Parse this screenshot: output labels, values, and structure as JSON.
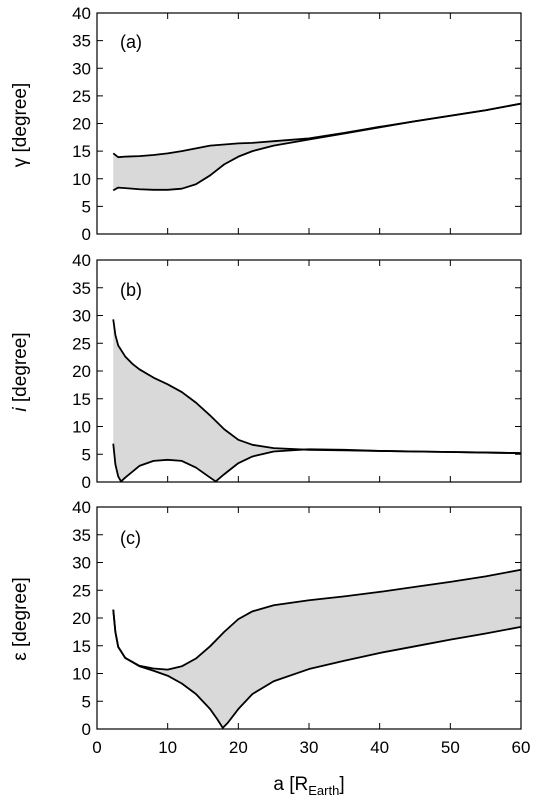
{
  "chart_data": [
    {
      "type": "area",
      "label": "(a)",
      "ylabel_symbol": "γ",
      "ylabel_unit": " [degree]",
      "ylim": [
        0,
        40
      ],
      "xlim": [
        0,
        60
      ],
      "yticks": [
        0,
        5,
        10,
        15,
        20,
        25,
        30,
        35,
        40
      ],
      "fill_color": "#d9d9d9",
      "upper": {
        "x": [
          2.3,
          3,
          4,
          6,
          8,
          10,
          12,
          14,
          16,
          18,
          20,
          22,
          25,
          30,
          35,
          40,
          45,
          50,
          55,
          60
        ],
        "y": [
          14.6,
          13.9,
          14.0,
          14.1,
          14.3,
          14.6,
          15.0,
          15.5,
          16.0,
          16.2,
          16.4,
          16.5,
          16.8,
          17.3,
          18.3,
          19.4,
          20.4,
          21.4,
          22.4,
          23.6
        ]
      },
      "lower": {
        "x": [
          2.3,
          3,
          4,
          6,
          8,
          10,
          12,
          14,
          16,
          18,
          20,
          22,
          25,
          30,
          35,
          40,
          45,
          50,
          55,
          60
        ],
        "y": [
          7.9,
          8.4,
          8.3,
          8.1,
          8.0,
          8.0,
          8.2,
          9.0,
          10.6,
          12.6,
          14.0,
          15.0,
          16.0,
          17.1,
          18.2,
          19.3,
          20.4,
          21.4,
          22.4,
          23.6
        ]
      }
    },
    {
      "type": "area",
      "label": "(b)",
      "ylabel_symbol": "i",
      "ylabel_unit": " [degree]",
      "ylim": [
        0,
        40
      ],
      "xlim": [
        0,
        60
      ],
      "yticks": [
        0,
        5,
        10,
        15,
        20,
        25,
        30,
        35,
        40
      ],
      "fill_color": "#d9d9d9",
      "upper": {
        "x": [
          2.3,
          2.6,
          3,
          4,
          5,
          6,
          8,
          10,
          12,
          14,
          16,
          18,
          20,
          22,
          25,
          30,
          35,
          40,
          45,
          50,
          55,
          60
        ],
        "y": [
          29.3,
          26.5,
          24.6,
          22.6,
          21.3,
          20.3,
          18.8,
          17.6,
          16.2,
          14.3,
          12.0,
          9.5,
          7.6,
          6.7,
          6.1,
          5.8,
          5.7,
          5.6,
          5.5,
          5.4,
          5.3,
          5.2
        ]
      },
      "lower": {
        "x": [
          2.3,
          2.6,
          3.0,
          3.4,
          4,
          6,
          8,
          10,
          12,
          14,
          16,
          16.8,
          18,
          20,
          22,
          25,
          30,
          35,
          40,
          45,
          50,
          55,
          60
        ],
        "y": [
          6.9,
          3.2,
          1.0,
          0.1,
          0.8,
          2.9,
          3.8,
          4.0,
          3.8,
          2.6,
          0.8,
          0.1,
          1.4,
          3.4,
          4.6,
          5.5,
          5.9,
          5.8,
          5.6,
          5.5,
          5.4,
          5.3,
          5.2
        ]
      }
    },
    {
      "type": "area",
      "label": "(c)",
      "ylabel_symbol": "ε",
      "ylabel_unit": " [degree]",
      "xlabel_main": "a [R",
      "xlabel_sub": "Earth",
      "xlabel_end": "]",
      "ylim": [
        0,
        40
      ],
      "xlim": [
        0,
        60
      ],
      "yticks": [
        0,
        5,
        10,
        15,
        20,
        25,
        30,
        35,
        40
      ],
      "xticks": [
        0,
        10,
        20,
        30,
        40,
        50,
        60
      ],
      "fill_color": "#d9d9d9",
      "upper": {
        "x": [
          2.3,
          2.6,
          3,
          4,
          6,
          8,
          10,
          12,
          14,
          16,
          18,
          20,
          22,
          25,
          30,
          35,
          40,
          45,
          50,
          55,
          60
        ],
        "y": [
          21.5,
          17.5,
          14.8,
          12.8,
          11.4,
          10.9,
          10.7,
          11.3,
          12.7,
          14.9,
          17.5,
          19.8,
          21.2,
          22.3,
          23.2,
          23.9,
          24.7,
          25.6,
          26.5,
          27.5,
          28.7
        ]
      },
      "lower": {
        "x": [
          2.3,
          2.6,
          3,
          4,
          6,
          8,
          10,
          12,
          14,
          16,
          17,
          17.8,
          18.5,
          20,
          22,
          25,
          30,
          35,
          40,
          45,
          50,
          55,
          60
        ],
        "y": [
          21.5,
          17.5,
          14.8,
          12.8,
          11.3,
          10.5,
          9.6,
          8.2,
          6.3,
          3.6,
          1.8,
          0.2,
          1.1,
          3.6,
          6.3,
          8.6,
          10.8,
          12.3,
          13.7,
          14.9,
          16.1,
          17.2,
          18.4
        ]
      }
    }
  ]
}
